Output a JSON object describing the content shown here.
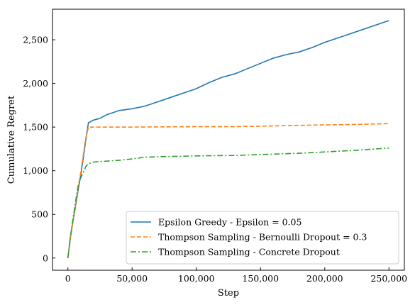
{
  "chart_data": {
    "type": "line",
    "xlabel": "Step",
    "ylabel": "Cumulative Regret",
    "xlim": [
      -12000,
      262000
    ],
    "ylim": [
      -140,
      2850
    ],
    "xticks": [
      {
        "value": 0,
        "label": "0"
      },
      {
        "value": 50000,
        "label": "50,000"
      },
      {
        "value": 100000,
        "label": "100,000"
      },
      {
        "value": 150000,
        "label": "150,000"
      },
      {
        "value": 200000,
        "label": "200,000"
      },
      {
        "value": 250000,
        "label": "250,000"
      }
    ],
    "yticks": [
      {
        "value": 0,
        "label": "0"
      },
      {
        "value": 500,
        "label": "500"
      },
      {
        "value": 1000,
        "label": "1,000"
      },
      {
        "value": 1500,
        "label": "1,500"
      },
      {
        "value": 2000,
        "label": "2,000"
      },
      {
        "value": 2500,
        "label": "2,500"
      }
    ],
    "grid": false,
    "legend_position": "lower-right",
    "series": [
      {
        "name": "Epsilon Greedy - Epsilon = 0.05",
        "color": "#1f77b4",
        "dash": "solid",
        "points": [
          [
            0,
            0
          ],
          [
            2000,
            250
          ],
          [
            4000,
            430
          ],
          [
            6000,
            600
          ],
          [
            8000,
            780
          ],
          [
            10000,
            950
          ],
          [
            12000,
            1150
          ],
          [
            14000,
            1360
          ],
          [
            16000,
            1550
          ],
          [
            20000,
            1580
          ],
          [
            25000,
            1600
          ],
          [
            30000,
            1640
          ],
          [
            40000,
            1690
          ],
          [
            50000,
            1710
          ],
          [
            60000,
            1740
          ],
          [
            70000,
            1790
          ],
          [
            80000,
            1840
          ],
          [
            90000,
            1890
          ],
          [
            100000,
            1940
          ],
          [
            110000,
            2010
          ],
          [
            120000,
            2070
          ],
          [
            130000,
            2110
          ],
          [
            140000,
            2170
          ],
          [
            150000,
            2230
          ],
          [
            160000,
            2290
          ],
          [
            170000,
            2330
          ],
          [
            180000,
            2360
          ],
          [
            190000,
            2410
          ],
          [
            200000,
            2470
          ],
          [
            210000,
            2520
          ],
          [
            220000,
            2570
          ],
          [
            230000,
            2620
          ],
          [
            240000,
            2670
          ],
          [
            250000,
            2720
          ]
        ]
      },
      {
        "name": "Thompson Sampling - Bernoulli Dropout = 0.3",
        "color": "#ff7f0e",
        "dash": "dashed",
        "points": [
          [
            0,
            0
          ],
          [
            2000,
            230
          ],
          [
            4000,
            420
          ],
          [
            6000,
            600
          ],
          [
            8000,
            800
          ],
          [
            10000,
            980
          ],
          [
            12000,
            1180
          ],
          [
            14000,
            1380
          ],
          [
            16000,
            1500
          ],
          [
            20000,
            1500
          ],
          [
            50000,
            1500
          ],
          [
            100000,
            1505
          ],
          [
            130000,
            1505
          ],
          [
            150000,
            1510
          ],
          [
            180000,
            1520
          ],
          [
            200000,
            1525
          ],
          [
            225000,
            1530
          ],
          [
            250000,
            1540
          ]
        ]
      },
      {
        "name": "Thompson Sampling - Concrete Dropout",
        "color": "#2ca02c",
        "dash": "dashdot",
        "points": [
          [
            0,
            0
          ],
          [
            2000,
            240
          ],
          [
            4000,
            450
          ],
          [
            6000,
            650
          ],
          [
            8000,
            830
          ],
          [
            10000,
            920
          ],
          [
            12000,
            980
          ],
          [
            14000,
            1050
          ],
          [
            16000,
            1080
          ],
          [
            20000,
            1100
          ],
          [
            30000,
            1110
          ],
          [
            40000,
            1120
          ],
          [
            50000,
            1135
          ],
          [
            55000,
            1145
          ],
          [
            60000,
            1155
          ],
          [
            70000,
            1160
          ],
          [
            100000,
            1170
          ],
          [
            130000,
            1175
          ],
          [
            150000,
            1185
          ],
          [
            180000,
            1200
          ],
          [
            200000,
            1215
          ],
          [
            225000,
            1235
          ],
          [
            250000,
            1260
          ]
        ]
      }
    ]
  }
}
